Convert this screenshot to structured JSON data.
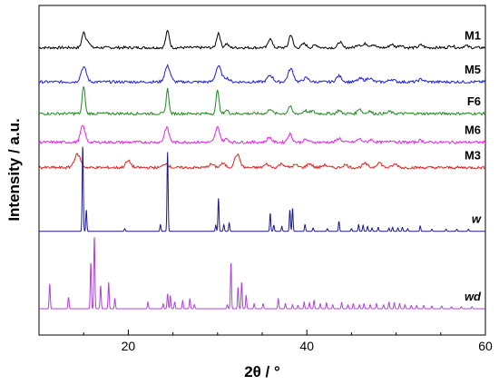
{
  "chart_data": {
    "type": "line",
    "title": "",
    "xlabel": "2θ / °",
    "ylabel": "Intensity / a.u.",
    "xlim": [
      10,
      60
    ],
    "x_ticks": [
      20,
      40,
      60
    ],
    "x_tick_labels": [
      "20",
      "40",
      "60"
    ],
    "y_ticks_shown": false,
    "grid": false,
    "legend": "labels at right end of each trace",
    "series": [
      {
        "name": "M1",
        "color": "#000000",
        "label_italic": false,
        "baseline": 0.872,
        "noise": 0.004,
        "peaks": [
          [
            15.0,
            0.045,
            0.2
          ],
          [
            15.5,
            0.02,
            0.2
          ],
          [
            24.4,
            0.05,
            0.2
          ],
          [
            30.1,
            0.045,
            0.2
          ],
          [
            31.0,
            0.012,
            0.2
          ],
          [
            35.9,
            0.03,
            0.2
          ],
          [
            38.2,
            0.04,
            0.2
          ],
          [
            39.7,
            0.012,
            0.25
          ],
          [
            41.0,
            0.008,
            0.25
          ],
          [
            43.7,
            0.018,
            0.2
          ],
          [
            45.8,
            0.01,
            0.25
          ],
          [
            46.6,
            0.012,
            0.25
          ],
          [
            47.4,
            0.01,
            0.25
          ],
          [
            49.5,
            0.01,
            0.25
          ],
          [
            50.5,
            0.008,
            0.25
          ],
          [
            52.8,
            0.008,
            0.25
          ],
          [
            56.2,
            0.006,
            0.25
          ],
          [
            57.8,
            0.006,
            0.25
          ]
        ]
      },
      {
        "name": "M5",
        "color": "#1f1fd6",
        "label_italic": false,
        "baseline": 0.768,
        "noise": 0.004,
        "peaks": [
          [
            15.0,
            0.045,
            0.3
          ],
          [
            24.4,
            0.048,
            0.3
          ],
          [
            30.1,
            0.048,
            0.3
          ],
          [
            31.0,
            0.012,
            0.3
          ],
          [
            35.9,
            0.02,
            0.3
          ],
          [
            38.2,
            0.04,
            0.3
          ],
          [
            39.9,
            0.012,
            0.3
          ],
          [
            43.6,
            0.018,
            0.3
          ],
          [
            46.0,
            0.01,
            0.3
          ],
          [
            47.0,
            0.012,
            0.3
          ],
          [
            49.5,
            0.008,
            0.3
          ],
          [
            52.8,
            0.008,
            0.3
          ]
        ]
      },
      {
        "name": "F6",
        "color": "#1e8a1e",
        "label_italic": false,
        "baseline": 0.672,
        "noise": 0.004,
        "peaks": [
          [
            15.0,
            0.085,
            0.15
          ],
          [
            24.4,
            0.075,
            0.15
          ],
          [
            30.0,
            0.075,
            0.15
          ],
          [
            31.0,
            0.01,
            0.2
          ],
          [
            35.9,
            0.015,
            0.2
          ],
          [
            38.1,
            0.022,
            0.2
          ],
          [
            39.8,
            0.01,
            0.2
          ],
          [
            40.6,
            0.008,
            0.2
          ],
          [
            43.6,
            0.01,
            0.2
          ],
          [
            45.9,
            0.016,
            0.2
          ],
          [
            47.0,
            0.008,
            0.2
          ],
          [
            49.3,
            0.006,
            0.2
          ]
        ]
      },
      {
        "name": "M6",
        "color": "#e622e6",
        "label_italic": false,
        "baseline": 0.585,
        "noise": 0.004,
        "peaks": [
          [
            14.9,
            0.05,
            0.25
          ],
          [
            24.3,
            0.045,
            0.25
          ],
          [
            30.0,
            0.045,
            0.25
          ],
          [
            31.0,
            0.01,
            0.25
          ],
          [
            35.8,
            0.015,
            0.25
          ],
          [
            38.1,
            0.025,
            0.25
          ],
          [
            39.9,
            0.008,
            0.25
          ],
          [
            43.6,
            0.012,
            0.25
          ],
          [
            45.9,
            0.01,
            0.25
          ],
          [
            47.2,
            0.008,
            0.25
          ],
          [
            49.5,
            0.006,
            0.25
          ],
          [
            52.7,
            0.006,
            0.25
          ]
        ]
      },
      {
        "name": "M3",
        "color": "#e02020",
        "label_italic": false,
        "baseline": 0.508,
        "noise": 0.004,
        "peaks": [
          [
            14.3,
            0.04,
            0.35
          ],
          [
            20.0,
            0.02,
            0.3
          ],
          [
            24.2,
            0.012,
            0.3
          ],
          [
            29.3,
            0.01,
            0.3
          ],
          [
            30.6,
            0.012,
            0.3
          ],
          [
            32.2,
            0.04,
            0.3
          ],
          [
            35.5,
            0.01,
            0.3
          ],
          [
            37.2,
            0.012,
            0.3
          ],
          [
            38.7,
            0.008,
            0.3
          ],
          [
            40.3,
            0.012,
            0.3
          ],
          [
            42.0,
            0.008,
            0.3
          ],
          [
            44.3,
            0.008,
            0.3
          ],
          [
            46.5,
            0.012,
            0.3
          ],
          [
            48.1,
            0.015,
            0.3
          ],
          [
            49.9,
            0.01,
            0.3
          ]
        ]
      },
      {
        "name": "w",
        "color": "#1a1a8c",
        "label_italic": true,
        "baseline": 0.315,
        "noise": 0,
        "peaks": [
          [
            14.9,
            0.26,
            0.06
          ],
          [
            15.3,
            0.065,
            0.06
          ],
          [
            19.6,
            0.008,
            0.06
          ],
          [
            23.6,
            0.02,
            0.06
          ],
          [
            24.4,
            0.24,
            0.06
          ],
          [
            29.8,
            0.018,
            0.06
          ],
          [
            30.1,
            0.1,
            0.06
          ],
          [
            30.7,
            0.02,
            0.06
          ],
          [
            31.3,
            0.025,
            0.06
          ],
          [
            35.9,
            0.055,
            0.06
          ],
          [
            36.3,
            0.018,
            0.06
          ],
          [
            37.2,
            0.015,
            0.06
          ],
          [
            38.1,
            0.065,
            0.06
          ],
          [
            38.4,
            0.07,
            0.06
          ],
          [
            39.8,
            0.02,
            0.06
          ],
          [
            40.7,
            0.01,
            0.06
          ],
          [
            42.3,
            0.008,
            0.06
          ],
          [
            43.6,
            0.03,
            0.06
          ],
          [
            45.0,
            0.008,
            0.06
          ],
          [
            45.8,
            0.02,
            0.06
          ],
          [
            46.3,
            0.018,
            0.06
          ],
          [
            46.8,
            0.015,
            0.06
          ],
          [
            47.3,
            0.01,
            0.06
          ],
          [
            48.0,
            0.012,
            0.06
          ],
          [
            49.2,
            0.01,
            0.06
          ],
          [
            49.6,
            0.012,
            0.06
          ],
          [
            50.2,
            0.01,
            0.06
          ],
          [
            50.7,
            0.012,
            0.06
          ],
          [
            51.3,
            0.008,
            0.06
          ],
          [
            52.7,
            0.016,
            0.06
          ],
          [
            54.0,
            0.006,
            0.06
          ],
          [
            55.6,
            0.006,
            0.06
          ],
          [
            56.8,
            0.006,
            0.06
          ],
          [
            58.1,
            0.006,
            0.06
          ]
        ]
      },
      {
        "name": "wd",
        "color": "#b040e0",
        "label_italic": true,
        "baseline": 0.08,
        "noise": 0,
        "peaks": [
          [
            11.2,
            0.075,
            0.06
          ],
          [
            13.3,
            0.035,
            0.06
          ],
          [
            15.8,
            0.14,
            0.06
          ],
          [
            16.2,
            0.22,
            0.06
          ],
          [
            16.9,
            0.07,
            0.06
          ],
          [
            17.8,
            0.08,
            0.06
          ],
          [
            18.5,
            0.03,
            0.06
          ],
          [
            22.2,
            0.02,
            0.06
          ],
          [
            23.9,
            0.015,
            0.06
          ],
          [
            24.4,
            0.045,
            0.06
          ],
          [
            24.7,
            0.04,
            0.06
          ],
          [
            25.2,
            0.02,
            0.06
          ],
          [
            26.1,
            0.025,
            0.06
          ],
          [
            26.9,
            0.03,
            0.06
          ],
          [
            27.4,
            0.012,
            0.06
          ],
          [
            31.1,
            0.012,
            0.06
          ],
          [
            31.5,
            0.14,
            0.06
          ],
          [
            32.3,
            0.065,
            0.06
          ],
          [
            32.7,
            0.08,
            0.06
          ],
          [
            33.2,
            0.04,
            0.06
          ],
          [
            34.1,
            0.015,
            0.06
          ],
          [
            35.1,
            0.015,
            0.06
          ],
          [
            36.8,
            0.03,
            0.06
          ],
          [
            37.6,
            0.015,
            0.06
          ],
          [
            38.4,
            0.012,
            0.06
          ],
          [
            39.0,
            0.01,
            0.06
          ],
          [
            39.7,
            0.02,
            0.06
          ],
          [
            40.3,
            0.018,
            0.06
          ],
          [
            40.8,
            0.025,
            0.06
          ],
          [
            41.5,
            0.015,
            0.06
          ],
          [
            42.2,
            0.018,
            0.06
          ],
          [
            42.9,
            0.012,
            0.06
          ],
          [
            43.9,
            0.018,
            0.06
          ],
          [
            44.6,
            0.012,
            0.06
          ],
          [
            45.2,
            0.015,
            0.06
          ],
          [
            45.9,
            0.012,
            0.06
          ],
          [
            46.4,
            0.015,
            0.06
          ],
          [
            47.1,
            0.012,
            0.06
          ],
          [
            47.8,
            0.015,
            0.06
          ],
          [
            48.6,
            0.012,
            0.06
          ],
          [
            49.2,
            0.02,
            0.06
          ],
          [
            49.8,
            0.018,
            0.06
          ],
          [
            50.4,
            0.015,
            0.06
          ],
          [
            51.0,
            0.012,
            0.06
          ],
          [
            51.7,
            0.01,
            0.06
          ],
          [
            52.3,
            0.01,
            0.06
          ],
          [
            53.1,
            0.01,
            0.06
          ],
          [
            54.0,
            0.008,
            0.06
          ],
          [
            55.1,
            0.008,
            0.06
          ],
          [
            56.2,
            0.006,
            0.06
          ],
          [
            57.3,
            0.006,
            0.06
          ],
          [
            58.5,
            0.006,
            0.06
          ]
        ]
      }
    ]
  }
}
